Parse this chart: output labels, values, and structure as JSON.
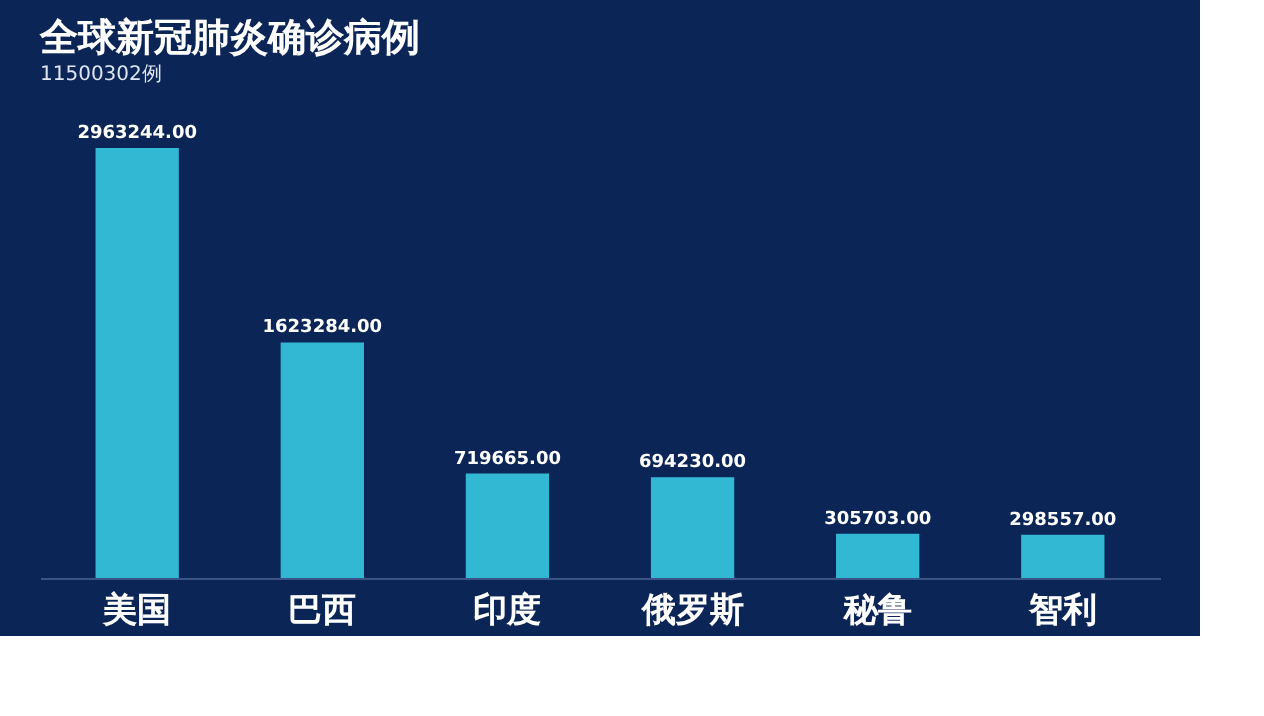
{
  "chart_data": {
    "type": "bar",
    "title": "全球新冠肺炎确诊病例",
    "subtitle": "11500302例",
    "categories": [
      "美国",
      "巴西",
      "印度",
      "俄罗斯",
      "秘鲁",
      "智利"
    ],
    "values": [
      2963244,
      1623284,
      719665,
      694230,
      305703,
      298557
    ],
    "value_labels": [
      "2963244.00",
      "1623284.00",
      "719665.00",
      "694230.00",
      "305703.00",
      "298557.00"
    ],
    "color": "#33b8d4",
    "grid": false
  }
}
